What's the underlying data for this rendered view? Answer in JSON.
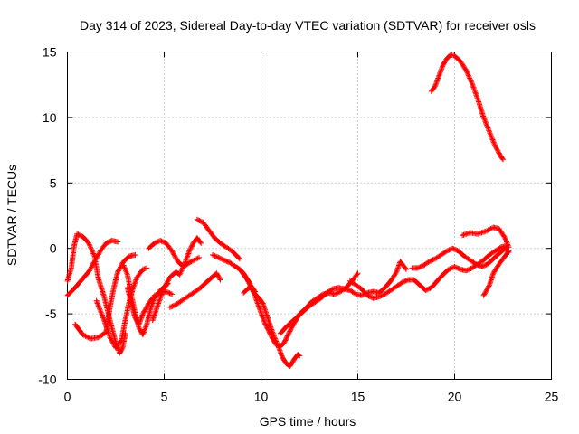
{
  "chart_data": {
    "type": "scatter",
    "title": "Day 314 of 2023, Sidereal Day-to-day VTEC variation (SDTVAR) for receiver osls",
    "xlabel": "GPS time / hours",
    "ylabel": "SDTVAR / TECUs",
    "xlim": [
      0,
      25
    ],
    "ylim": [
      -10,
      15
    ],
    "xticks": [
      "0",
      "5",
      "10",
      "15",
      "20",
      "25"
    ],
    "yticks": [
      "-10",
      "-5",
      "0",
      "5",
      "10",
      "15"
    ],
    "grid": true,
    "marker": "+",
    "color": "#ff0000",
    "series": [
      {
        "name": "trace-1",
        "points": [
          [
            0.0,
            -2.5
          ],
          [
            0.2,
            -1.5
          ],
          [
            0.35,
            0.2
          ],
          [
            0.5,
            1.1
          ],
          [
            0.8,
            0.9
          ],
          [
            1.1,
            0.4
          ],
          [
            1.4,
            -0.6
          ],
          [
            1.6,
            -2.3
          ],
          [
            1.9,
            -3.7
          ],
          [
            2.2,
            -5.5
          ],
          [
            2.5,
            -7.2
          ],
          [
            2.7,
            -8.0
          ],
          [
            2.85,
            -7.6
          ],
          [
            3.0,
            -6.5
          ]
        ]
      },
      {
        "name": "trace-2",
        "points": [
          [
            0.0,
            -3.6
          ],
          [
            0.4,
            -3.0
          ],
          [
            0.8,
            -2.3
          ],
          [
            1.1,
            -1.8
          ],
          [
            1.4,
            -1.0
          ],
          [
            1.7,
            -0.2
          ],
          [
            2.0,
            0.4
          ],
          [
            2.3,
            0.6
          ],
          [
            2.6,
            0.5
          ]
        ]
      },
      {
        "name": "trace-3",
        "points": [
          [
            0.4,
            -5.8
          ],
          [
            0.8,
            -6.6
          ],
          [
            1.2,
            -6.9
          ],
          [
            1.6,
            -6.8
          ],
          [
            2.0,
            -6.4
          ],
          [
            2.2,
            -4.5
          ],
          [
            2.4,
            -3.0
          ],
          [
            2.6,
            -1.8
          ],
          [
            2.9,
            -1.0
          ],
          [
            3.2,
            -0.6
          ],
          [
            3.5,
            -0.5
          ]
        ]
      },
      {
        "name": "trace-4",
        "points": [
          [
            1.5,
            -4.0
          ],
          [
            1.9,
            -5.5
          ],
          [
            2.2,
            -6.8
          ],
          [
            2.5,
            -7.6
          ],
          [
            2.8,
            -7.0
          ],
          [
            3.0,
            -5.4
          ],
          [
            3.2,
            -4.0
          ],
          [
            3.4,
            -3.0
          ],
          [
            3.6,
            -2.2
          ],
          [
            3.9,
            -1.6
          ],
          [
            4.1,
            -1.5
          ]
        ]
      },
      {
        "name": "trace-5",
        "points": [
          [
            2.9,
            -1.3
          ],
          [
            3.1,
            -2.0
          ],
          [
            3.3,
            -3.5
          ],
          [
            3.5,
            -5.0
          ],
          [
            3.7,
            -6.1
          ],
          [
            3.9,
            -6.6
          ],
          [
            4.1,
            -5.8
          ],
          [
            4.3,
            -4.6
          ],
          [
            4.5,
            -3.8
          ],
          [
            4.8,
            -3.2
          ],
          [
            5.2,
            -2.7
          ]
        ]
      },
      {
        "name": "trace-6",
        "points": [
          [
            3.1,
            -3.0
          ],
          [
            3.3,
            -4.2
          ],
          [
            3.5,
            -5.3
          ],
          [
            3.7,
            -5.8
          ],
          [
            3.9,
            -5.0
          ],
          [
            4.2,
            -4.2
          ],
          [
            4.5,
            -3.6
          ],
          [
            4.8,
            -3.4
          ],
          [
            5.1,
            -3.3
          ],
          [
            5.4,
            -3.5
          ]
        ]
      },
      {
        "name": "trace-7",
        "points": [
          [
            4.4,
            -5.5
          ],
          [
            4.7,
            -4.2
          ],
          [
            5.0,
            -3.0
          ],
          [
            5.3,
            -2.2
          ],
          [
            5.6,
            -1.8
          ],
          [
            5.8,
            -2.0
          ],
          [
            6.1,
            -1.0
          ],
          [
            6.3,
            -0.2
          ],
          [
            6.5,
            0.4
          ],
          [
            6.7,
            0.8
          ],
          [
            6.9,
            0.4
          ]
        ]
      },
      {
        "name": "trace-8",
        "points": [
          [
            4.2,
            0.0
          ],
          [
            4.5,
            0.4
          ],
          [
            4.8,
            0.6
          ],
          [
            5.1,
            0.4
          ],
          [
            5.4,
            -0.2
          ],
          [
            5.7,
            -1.0
          ],
          [
            6.0,
            -1.4
          ],
          [
            6.4,
            -1.0
          ],
          [
            6.8,
            -0.7
          ]
        ]
      },
      {
        "name": "trace-9",
        "points": [
          [
            5.3,
            -4.5
          ],
          [
            5.6,
            -4.3
          ],
          [
            5.9,
            -4.0
          ],
          [
            6.2,
            -3.7
          ],
          [
            6.5,
            -3.4
          ],
          [
            6.8,
            -3.1
          ],
          [
            7.1,
            -2.7
          ],
          [
            7.4,
            -2.3
          ],
          [
            7.7,
            -1.9
          ],
          [
            7.9,
            -2.4
          ]
        ]
      },
      {
        "name": "trace-10",
        "points": [
          [
            6.7,
            2.2
          ],
          [
            7.0,
            2.0
          ],
          [
            7.3,
            1.4
          ],
          [
            7.6,
            0.8
          ],
          [
            7.9,
            0.4
          ],
          [
            8.2,
            0.1
          ],
          [
            8.5,
            -0.2
          ],
          [
            8.7,
            -0.5
          ],
          [
            8.9,
            -0.8
          ]
        ]
      },
      {
        "name": "trace-11",
        "points": [
          [
            7.5,
            -0.5
          ],
          [
            7.8,
            -0.7
          ],
          [
            8.1,
            -0.9
          ],
          [
            8.4,
            -1.1
          ],
          [
            8.7,
            -1.4
          ],
          [
            8.9,
            -1.6
          ],
          [
            9.1,
            -1.9
          ],
          [
            9.3,
            -2.4
          ],
          [
            9.5,
            -3.0
          ],
          [
            9.7,
            -3.5
          ],
          [
            9.9,
            -3.8
          ],
          [
            10.1,
            -4.2
          ],
          [
            10.3,
            -5.1
          ],
          [
            10.5,
            -6.0
          ],
          [
            10.7,
            -6.8
          ],
          [
            10.9,
            -7.5
          ],
          [
            11.1,
            -8.3
          ],
          [
            11.3,
            -8.8
          ],
          [
            11.5,
            -9.0
          ],
          [
            11.7,
            -8.5
          ],
          [
            11.9,
            -8.1
          ],
          [
            12.0,
            -8.2
          ]
        ]
      },
      {
        "name": "trace-12",
        "points": [
          [
            9.0,
            -1.8
          ],
          [
            9.2,
            -2.2
          ],
          [
            9.4,
            -2.6
          ],
          [
            9.6,
            -3.3
          ],
          [
            9.8,
            -4.1
          ],
          [
            10.0,
            -4.9
          ],
          [
            10.2,
            -5.7
          ],
          [
            10.4,
            -6.3
          ],
          [
            10.6,
            -6.9
          ],
          [
            10.8,
            -7.4
          ],
          [
            11.0,
            -7.5
          ],
          [
            11.2,
            -7.2
          ],
          [
            11.4,
            -6.6
          ],
          [
            11.6,
            -6.0
          ],
          [
            11.8,
            -5.5
          ],
          [
            12.0,
            -5.0
          ],
          [
            12.3,
            -4.6
          ],
          [
            12.6,
            -4.1
          ],
          [
            12.9,
            -3.8
          ],
          [
            13.2,
            -3.5
          ],
          [
            13.5,
            -3.4
          ],
          [
            13.8,
            -3.5
          ],
          [
            14.1,
            -3.3
          ],
          [
            14.4,
            -3.0
          ],
          [
            14.7,
            -2.5
          ],
          [
            15.0,
            -1.9
          ]
        ]
      },
      {
        "name": "trace-13",
        "points": [
          [
            9.1,
            -3.4
          ],
          [
            9.3,
            -3.1
          ],
          [
            9.5,
            -2.9
          ],
          [
            9.7,
            -3.3
          ]
        ]
      },
      {
        "name": "trace-14",
        "points": [
          [
            11.0,
            -6.5
          ],
          [
            11.3,
            -6.0
          ],
          [
            11.6,
            -5.6
          ],
          [
            11.9,
            -5.2
          ],
          [
            12.2,
            -4.8
          ],
          [
            12.5,
            -4.4
          ],
          [
            12.8,
            -4.1
          ],
          [
            13.1,
            -3.8
          ],
          [
            13.4,
            -3.4
          ],
          [
            13.7,
            -3.1
          ],
          [
            14.0,
            -3.0
          ],
          [
            14.3,
            -3.1
          ],
          [
            14.6,
            -3.2
          ],
          [
            14.9,
            -3.5
          ],
          [
            15.2,
            -3.6
          ],
          [
            15.5,
            -3.4
          ],
          [
            15.8,
            -3.3
          ],
          [
            16.1,
            -3.4
          ],
          [
            16.4,
            -3.0
          ],
          [
            16.7,
            -2.5
          ],
          [
            17.0,
            -1.8
          ],
          [
            17.2,
            -1.0
          ],
          [
            17.5,
            -1.6
          ]
        ]
      },
      {
        "name": "trace-15",
        "points": [
          [
            14.6,
            -2.5
          ],
          [
            14.9,
            -2.8
          ],
          [
            15.2,
            -3.1
          ],
          [
            15.5,
            -3.6
          ],
          [
            15.8,
            -3.8
          ],
          [
            16.1,
            -3.7
          ],
          [
            16.4,
            -3.5
          ],
          [
            16.7,
            -3.2
          ],
          [
            17.0,
            -2.9
          ],
          [
            17.3,
            -2.6
          ],
          [
            17.6,
            -2.4
          ],
          [
            17.9,
            -2.4
          ],
          [
            18.2,
            -2.8
          ],
          [
            18.5,
            -3.2
          ],
          [
            18.8,
            -3.0
          ],
          [
            19.1,
            -2.5
          ],
          [
            19.4,
            -2.0
          ],
          [
            19.7,
            -1.6
          ],
          [
            20.0,
            -1.4
          ],
          [
            20.3,
            -1.6
          ],
          [
            20.6,
            -1.7
          ],
          [
            20.9,
            -1.5
          ],
          [
            21.2,
            -1.2
          ],
          [
            21.5,
            -0.9
          ],
          [
            21.8,
            -0.5
          ],
          [
            22.1,
            -0.2
          ],
          [
            22.4,
            0.1
          ],
          [
            22.7,
            0.2
          ]
        ]
      },
      {
        "name": "trace-16",
        "points": [
          [
            17.8,
            -1.5
          ],
          [
            18.1,
            -1.5
          ],
          [
            18.4,
            -1.3
          ],
          [
            18.7,
            -1.0
          ],
          [
            19.0,
            -0.8
          ],
          [
            19.3,
            -0.5
          ],
          [
            19.6,
            -0.2
          ],
          [
            19.9,
            0.0
          ],
          [
            20.2,
            -0.2
          ],
          [
            20.5,
            -0.6
          ],
          [
            20.8,
            -0.9
          ],
          [
            21.1,
            -1.2
          ],
          [
            21.4,
            -1.4
          ],
          [
            21.7,
            -1.2
          ],
          [
            22.0,
            -0.8
          ],
          [
            22.3,
            -0.4
          ],
          [
            22.6,
            0.0
          ],
          [
            22.8,
            -0.3
          ]
        ]
      },
      {
        "name": "trace-17",
        "points": [
          [
            20.4,
            1.0
          ],
          [
            20.8,
            1.2
          ],
          [
            21.2,
            1.1
          ],
          [
            21.6,
            1.3
          ],
          [
            22.0,
            1.6
          ],
          [
            22.3,
            1.5
          ],
          [
            22.6,
            0.8
          ],
          [
            22.8,
            0.1
          ]
        ]
      },
      {
        "name": "trace-18",
        "points": [
          [
            21.5,
            -3.6
          ],
          [
            21.8,
            -2.8
          ],
          [
            22.0,
            -1.9
          ],
          [
            22.3,
            -1.2
          ],
          [
            22.6,
            -0.6
          ],
          [
            22.8,
            -0.2
          ]
        ]
      },
      {
        "name": "trace-19",
        "points": [
          [
            18.8,
            12.0
          ],
          [
            19.0,
            12.4
          ],
          [
            19.2,
            13.2
          ],
          [
            19.4,
            14.0
          ],
          [
            19.6,
            14.5
          ],
          [
            19.8,
            14.8
          ],
          [
            20.0,
            14.7
          ],
          [
            20.3,
            14.3
          ],
          [
            20.6,
            13.6
          ],
          [
            20.9,
            12.6
          ],
          [
            21.2,
            11.4
          ],
          [
            21.5,
            10.0
          ],
          [
            21.8,
            8.9
          ],
          [
            22.1,
            7.8
          ],
          [
            22.4,
            7.0
          ],
          [
            22.5,
            6.8
          ]
        ]
      }
    ]
  }
}
